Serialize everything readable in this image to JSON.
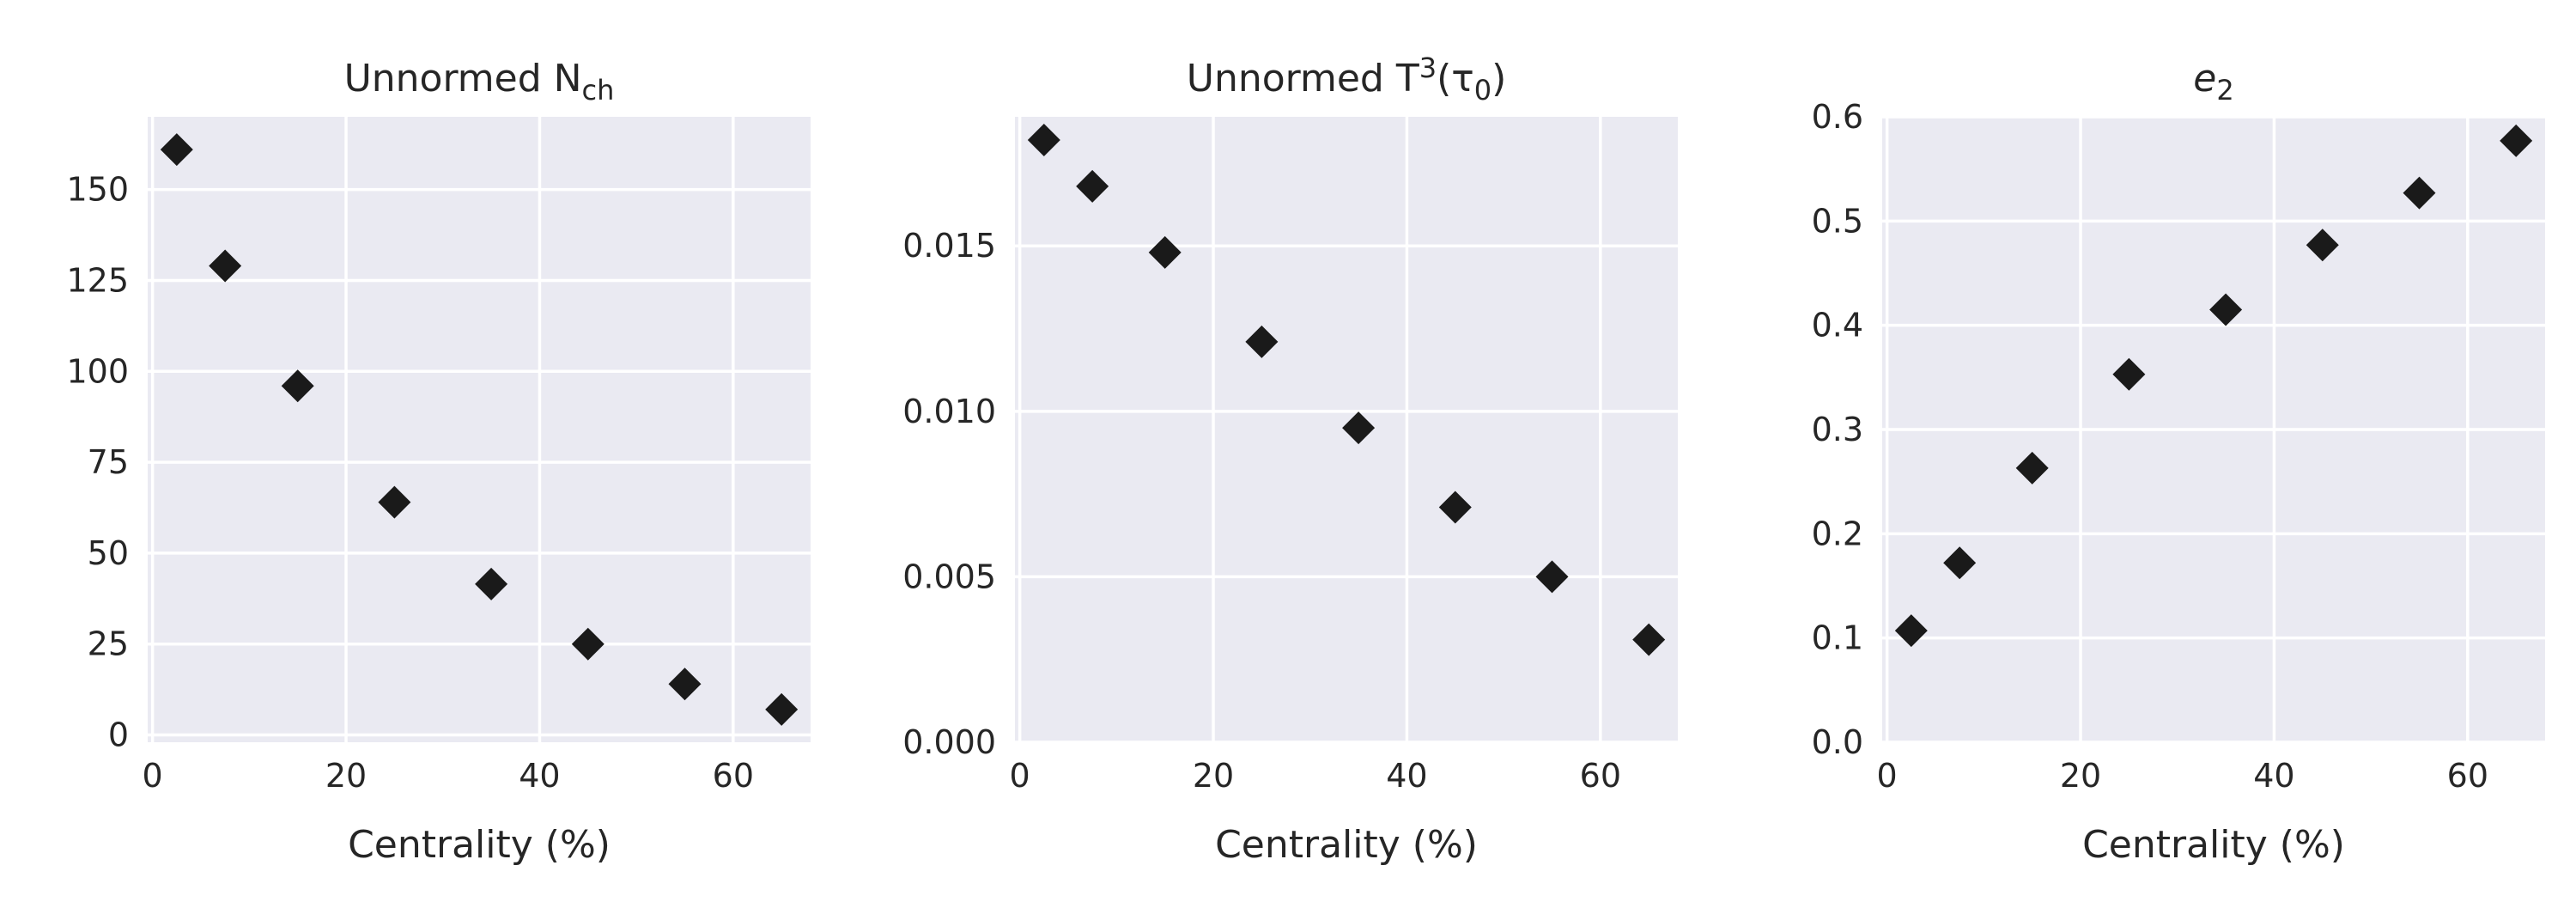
{
  "chart_data": [
    {
      "type": "scatter",
      "title": "Unnormed N",
      "title_math_sub": "ch",
      "xlabel": "Centrality (%)",
      "ylabel": "",
      "xlim": [
        -0.5,
        68
      ],
      "ylim": [
        -2,
        170
      ],
      "xticks": [
        0,
        20,
        40,
        60
      ],
      "yticks": [
        0,
        25,
        50,
        75,
        100,
        125,
        150
      ],
      "ytick_labels": [
        "0",
        "25",
        "50",
        "75",
        "100",
        "125",
        "150"
      ],
      "grid": true,
      "marker": "diamond",
      "marker_color": "#1a1a1a",
      "x": [
        2.5,
        7.5,
        15,
        25,
        35,
        45,
        55,
        65
      ],
      "y": [
        161,
        129,
        96,
        64,
        41.5,
        25,
        14,
        7
      ]
    },
    {
      "type": "scatter",
      "title": "Unnormed T",
      "title_math_sup": "3",
      "title_math_rest": "(τ",
      "title_math_rest_sub": "0",
      "title_math_close": ")",
      "xlabel": "Centrality (%)",
      "ylabel": "",
      "xlim": [
        -0.5,
        68
      ],
      "ylim": [
        0,
        0.0189
      ],
      "xticks": [
        0,
        20,
        40,
        60
      ],
      "yticks": [
        0,
        0.005,
        0.01,
        0.015
      ],
      "ytick_labels": [
        "0.000",
        "0.005",
        "0.010",
        "0.015"
      ],
      "grid": true,
      "marker": "diamond",
      "marker_color": "#1a1a1a",
      "x": [
        2.5,
        7.5,
        15,
        25,
        35,
        45,
        55,
        65
      ],
      "y": [
        0.0182,
        0.0168,
        0.0148,
        0.0121,
        0.0095,
        0.0071,
        0.005,
        0.0031
      ]
    },
    {
      "type": "scatter",
      "title": "e",
      "title_math_sub": "2",
      "xlabel": "Centrality (%)",
      "ylabel": "",
      "xlim": [
        -0.5,
        68
      ],
      "ylim": [
        0,
        0.6
      ],
      "xticks": [
        0,
        20,
        40,
        60
      ],
      "yticks": [
        0,
        0.1,
        0.2,
        0.3,
        0.4,
        0.5,
        0.6
      ],
      "ytick_labels": [
        "0.0",
        "0.1",
        "0.2",
        "0.3",
        "0.4",
        "0.5",
        "0.6"
      ],
      "grid": true,
      "marker": "diamond",
      "marker_color": "#1a1a1a",
      "x": [
        2.5,
        7.5,
        15,
        25,
        35,
        45,
        55,
        65
      ],
      "y": [
        0.107,
        0.172,
        0.263,
        0.353,
        0.415,
        0.477,
        0.527,
        0.577
      ]
    }
  ]
}
